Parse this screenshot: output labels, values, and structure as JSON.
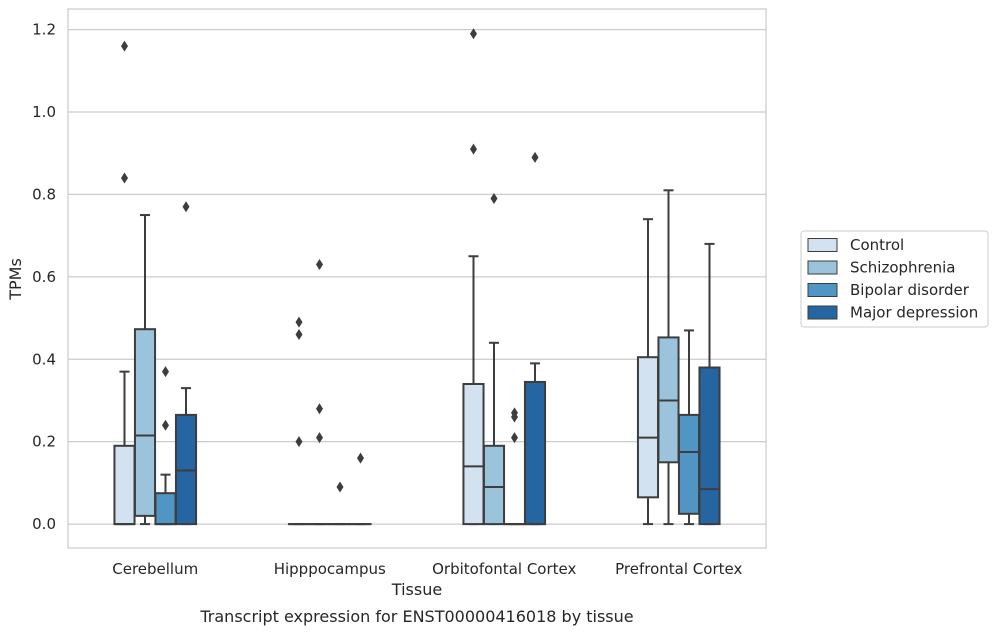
{
  "caption": "Transcript expression for ENST00000416018 by tissue",
  "chart_data": {
    "type": "boxplot",
    "xlabel": "Tissue",
    "ylabel": "TPMs",
    "ylim": [
      -0.058,
      1.25
    ],
    "yticks": [
      "0.0",
      "0.2",
      "0.4",
      "0.6",
      "0.8",
      "1.0",
      "1.2"
    ],
    "grid": "horizontal",
    "legend_position": "right",
    "categories": [
      "Cerebellum",
      "Hipppocampus",
      "Orbitofontal Cortex",
      "Prefrontal Cortex"
    ],
    "series": [
      {
        "name": "Control",
        "color": "#d3e2f0",
        "boxes": [
          {
            "q1": 0.0,
            "median": 0.0,
            "q3": 0.19,
            "whisker_low": 0.0,
            "whisker_high": 0.37,
            "outliers": [
              0.84,
              1.16
            ]
          },
          {
            "q1": 0.0,
            "median": 0.0,
            "q3": 0.0,
            "whisker_low": 0.0,
            "whisker_high": 0.0,
            "outliers": [
              0.2,
              0.46,
              0.49
            ]
          },
          {
            "q1": 0.0,
            "median": 0.14,
            "q3": 0.34,
            "whisker_low": 0.0,
            "whisker_high": 0.65,
            "outliers": [
              0.91,
              1.19
            ]
          },
          {
            "q1": 0.065,
            "median": 0.21,
            "q3": 0.405,
            "whisker_low": 0.0,
            "whisker_high": 0.74,
            "outliers": []
          }
        ]
      },
      {
        "name": "Schizophrenia",
        "color": "#9bc3db",
        "boxes": [
          {
            "q1": 0.02,
            "median": 0.215,
            "q3": 0.473,
            "whisker_low": 0.0,
            "whisker_high": 0.75,
            "outliers": []
          },
          {
            "q1": 0.0,
            "median": 0.0,
            "q3": 0.0,
            "whisker_low": 0.0,
            "whisker_high": 0.0,
            "outliers": [
              0.21,
              0.28,
              0.63
            ]
          },
          {
            "q1": 0.0,
            "median": 0.09,
            "q3": 0.19,
            "whisker_low": 0.0,
            "whisker_high": 0.44,
            "outliers": [
              0.79
            ]
          },
          {
            "q1": 0.15,
            "median": 0.3,
            "q3": 0.453,
            "whisker_low": 0.0,
            "whisker_high": 0.81,
            "outliers": []
          }
        ]
      },
      {
        "name": "Bipolar disorder",
        "color": "#5195c5",
        "boxes": [
          {
            "q1": 0.0,
            "median": 0.0,
            "q3": 0.075,
            "whisker_low": 0.0,
            "whisker_high": 0.12,
            "outliers": [
              0.24,
              0.37
            ]
          },
          {
            "q1": 0.0,
            "median": 0.0,
            "q3": 0.0,
            "whisker_low": 0.0,
            "whisker_high": 0.0,
            "outliers": [
              0.09
            ]
          },
          {
            "q1": 0.0,
            "median": 0.0,
            "q3": 0.0,
            "whisker_low": 0.0,
            "whisker_high": 0.0,
            "outliers": [
              0.21,
              0.26,
              0.27
            ]
          },
          {
            "q1": 0.025,
            "median": 0.175,
            "q3": 0.265,
            "whisker_low": 0.0,
            "whisker_high": 0.47,
            "outliers": []
          }
        ]
      },
      {
        "name": "Major depression",
        "color": "#2565a2",
        "boxes": [
          {
            "q1": 0.0,
            "median": 0.13,
            "q3": 0.265,
            "whisker_low": 0.0,
            "whisker_high": 0.33,
            "outliers": [
              0.77
            ]
          },
          {
            "q1": 0.0,
            "median": 0.0,
            "q3": 0.0,
            "whisker_low": 0.0,
            "whisker_high": 0.0,
            "outliers": [
              0.16
            ]
          },
          {
            "q1": 0.0,
            "median": 0.0,
            "q3": 0.345,
            "whisker_low": 0.0,
            "whisker_high": 0.39,
            "outliers": [
              0.89
            ]
          },
          {
            "q1": 0.0,
            "median": 0.085,
            "q3": 0.38,
            "whisker_low": 0.0,
            "whisker_high": 0.68,
            "outliers": []
          }
        ]
      }
    ]
  }
}
